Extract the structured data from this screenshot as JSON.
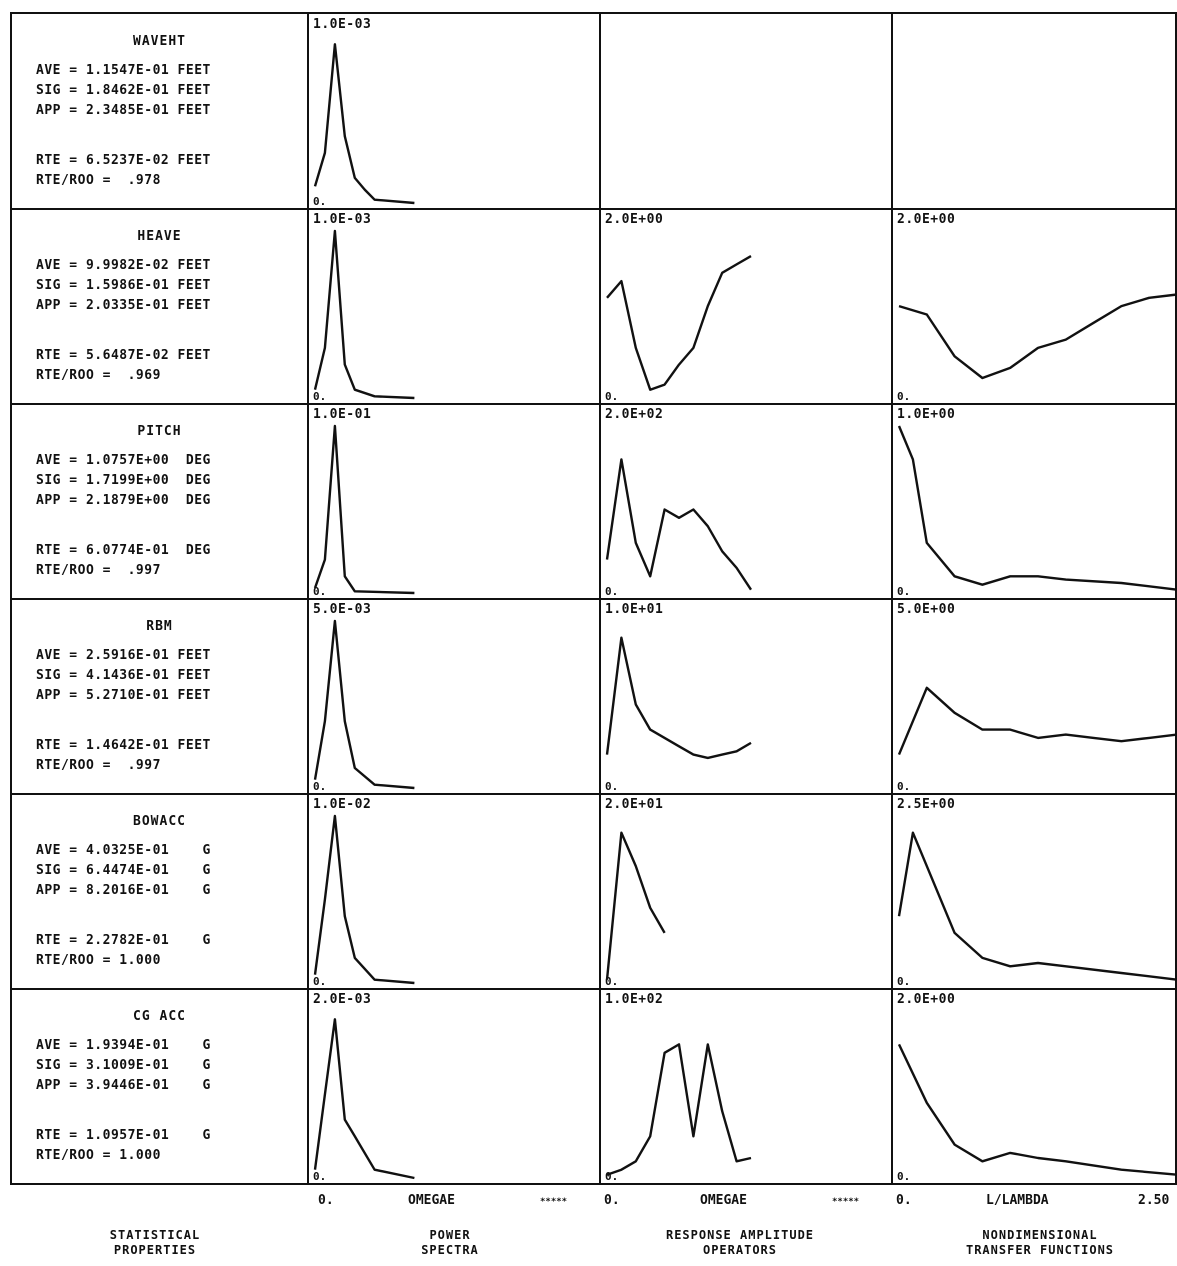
{
  "rows": [
    {
      "title": "WAVEHT",
      "stats": [
        "AVE = 1.1547E-01 FEET",
        "SIG = 1.8462E-01 FEET",
        "APP = 2.3485E-01 FEET"
      ],
      "rte": [
        "RTE = 6.5237E-02 FEET",
        "RTE/ROO =  .978"
      ],
      "spectra_scale": "1.0E-03",
      "rao_scale": "",
      "tf_scale": ""
    },
    {
      "title": "HEAVE",
      "stats": [
        "AVE = 9.9982E-02 FEET",
        "SIG = 1.5986E-01 FEET",
        "APP = 2.0335E-01 FEET"
      ],
      "rte": [
        "RTE = 5.6487E-02 FEET",
        "RTE/ROO =  .969"
      ],
      "spectra_scale": "1.0E-03",
      "rao_scale": "2.0E+00",
      "tf_scale": "2.0E+00"
    },
    {
      "title": "PITCH",
      "stats": [
        "AVE = 1.0757E+00  DEG",
        "SIG = 1.7199E+00  DEG",
        "APP = 2.1879E+00  DEG"
      ],
      "rte": [
        "RTE = 6.0774E-01  DEG",
        "RTE/ROO =  .997"
      ],
      "spectra_scale": "1.0E-01",
      "rao_scale": "2.0E+02",
      "tf_scale": "1.0E+00"
    },
    {
      "title": "RBM",
      "stats": [
        "AVE = 2.5916E-01 FEET",
        "SIG = 4.1436E-01 FEET",
        "APP = 5.2710E-01 FEET"
      ],
      "rte": [
        "RTE = 1.4642E-01 FEET",
        "RTE/ROO =  .997"
      ],
      "spectra_scale": "5.0E-03",
      "rao_scale": "1.0E+01",
      "tf_scale": "5.0E+00"
    },
    {
      "title": "BOWACC",
      "stats": [
        "AVE = 4.0325E-01    G",
        "SIG = 6.4474E-01    G",
        "APP = 8.2016E-01    G"
      ],
      "rte": [
        "RTE = 2.2782E-01    G",
        "RTE/ROO = 1.000"
      ],
      "spectra_scale": "1.0E-02",
      "rao_scale": "2.0E+01",
      "tf_scale": "2.5E+00"
    },
    {
      "title": "CG ACC",
      "stats": [
        "AVE = 1.9394E-01    G",
        "SIG = 3.1009E-01    G",
        "APP = 3.9446E-01    G"
      ],
      "rte": [
        "RTE = 1.0957E-01    G",
        "RTE/ROO = 1.000"
      ],
      "spectra_scale": "2.0E-03",
      "rao_scale": "1.0E+02",
      "tf_scale": "2.0E+00"
    }
  ],
  "zero_label": "0.",
  "axes": {
    "spectra": {
      "start": "0.",
      "label": "OMEGAE",
      "end": "*****"
    },
    "rao": {
      "start": "0.",
      "label": "OMEGAE",
      "end": "*****"
    },
    "tf": {
      "start": "0.",
      "label": "L/LAMBDA",
      "end": "2.50"
    }
  },
  "footers": {
    "stats": [
      "STATISTICAL",
      "PROPERTIES"
    ],
    "spectra": [
      "POWER",
      "SPECTRA"
    ],
    "rao": [
      "RESPONSE AMPLITUDE",
      "OPERATORS"
    ],
    "tf": [
      "NONDIMENSIONAL",
      "TRANSFER FUNCTIONS"
    ]
  },
  "chart_data": [
    {
      "type": "line",
      "panel": "power spectra",
      "series": [
        {
          "values": [
            [
              0,
              0.1
            ],
            [
              0.1,
              0.3
            ],
            [
              0.2,
              0.95
            ],
            [
              0.3,
              0.4
            ],
            [
              0.4,
              0.15
            ],
            [
              0.5,
              0.08
            ],
            [
              0.6,
              0.02
            ],
            [
              1,
              0
            ]
          ]
        },
        {
          "values": [
            [
              0,
              0.05
            ],
            [
              0.1,
              0.3
            ],
            [
              0.2,
              1.0
            ],
            [
              0.3,
              0.2
            ],
            [
              0.4,
              0.05
            ],
            [
              0.6,
              0.01
            ],
            [
              1,
              0
            ]
          ]
        },
        {
          "values": [
            [
              0,
              0.03
            ],
            [
              0.1,
              0.2
            ],
            [
              0.2,
              1.0
            ],
            [
              0.3,
              0.1
            ],
            [
              0.4,
              0.01
            ],
            [
              1,
              0
            ]
          ]
        },
        {
          "values": [
            [
              0,
              0.05
            ],
            [
              0.1,
              0.4
            ],
            [
              0.2,
              1.0
            ],
            [
              0.3,
              0.4
            ],
            [
              0.4,
              0.12
            ],
            [
              0.6,
              0.02
            ],
            [
              1,
              0
            ]
          ]
        },
        {
          "values": [
            [
              0,
              0.05
            ],
            [
              0.1,
              0.5
            ],
            [
              0.2,
              1.0
            ],
            [
              0.3,
              0.4
            ],
            [
              0.4,
              0.15
            ],
            [
              0.6,
              0.02
            ],
            [
              1,
              0
            ]
          ]
        },
        {
          "values": [
            [
              0,
              0.05
            ],
            [
              0.1,
              0.5
            ],
            [
              0.2,
              0.95
            ],
            [
              0.3,
              0.35
            ],
            [
              0.4,
              0.25
            ],
            [
              0.6,
              0.05
            ],
            [
              1,
              0
            ]
          ]
        }
      ]
    },
    {
      "type": "line",
      "panel": "response amplitude operators",
      "series": [
        {
          "values": []
        },
        {
          "values": [
            [
              0,
              0.6
            ],
            [
              0.1,
              0.7
            ],
            [
              0.2,
              0.3
            ],
            [
              0.3,
              0.05
            ],
            [
              0.4,
              0.08
            ],
            [
              0.5,
              0.2
            ],
            [
              0.6,
              0.3
            ],
            [
              0.7,
              0.55
            ],
            [
              0.8,
              0.75
            ],
            [
              0.9,
              0.8
            ],
            [
              1,
              0.85
            ]
          ]
        },
        {
          "values": [
            [
              0,
              0.2
            ],
            [
              0.1,
              0.8
            ],
            [
              0.2,
              0.3
            ],
            [
              0.3,
              0.1
            ],
            [
              0.4,
              0.5
            ],
            [
              0.5,
              0.45
            ],
            [
              0.6,
              0.5
            ],
            [
              0.7,
              0.4
            ],
            [
              0.8,
              0.25
            ],
            [
              0.9,
              0.15
            ],
            [
              1,
              0.02
            ]
          ]
        },
        {
          "values": [
            [
              0,
              0.2
            ],
            [
              0.1,
              0.9
            ],
            [
              0.2,
              0.5
            ],
            [
              0.3,
              0.35
            ],
            [
              0.4,
              0.3
            ],
            [
              0.5,
              0.25
            ],
            [
              0.6,
              0.2
            ],
            [
              0.7,
              0.18
            ],
            [
              0.8,
              0.2
            ],
            [
              0.9,
              0.22
            ],
            [
              1,
              0.27
            ]
          ]
        },
        {
          "values": [
            [
              0,
              0.02
            ],
            [
              0.1,
              0.9
            ],
            [
              0.2,
              0.7
            ],
            [
              0.3,
              0.45
            ],
            [
              0.4,
              0.3
            ]
          ]
        },
        {
          "values": [
            [
              0,
              0.02
            ],
            [
              0.1,
              0.05
            ],
            [
              0.2,
              0.1
            ],
            [
              0.3,
              0.25
            ],
            [
              0.4,
              0.75
            ],
            [
              0.5,
              0.8
            ],
            [
              0.6,
              0.25
            ],
            [
              0.7,
              0.8
            ],
            [
              0.8,
              0.4
            ],
            [
              0.9,
              0.1
            ],
            [
              1,
              0.12
            ]
          ]
        }
      ]
    },
    {
      "type": "line",
      "panel": "nondimensional transfer functions",
      "series": [
        {
          "values": []
        },
        {
          "values": [
            [
              0,
              0.55
            ],
            [
              0.1,
              0.5
            ],
            [
              0.2,
              0.25
            ],
            [
              0.3,
              0.12
            ],
            [
              0.4,
              0.18
            ],
            [
              0.5,
              0.3
            ],
            [
              0.6,
              0.35
            ],
            [
              0.7,
              0.45
            ],
            [
              0.8,
              0.55
            ],
            [
              0.9,
              0.6
            ],
            [
              1,
              0.62
            ]
          ]
        },
        {
          "values": [
            [
              0,
              1.0
            ],
            [
              0.05,
              0.8
            ],
            [
              0.1,
              0.3
            ],
            [
              0.2,
              0.1
            ],
            [
              0.3,
              0.05
            ],
            [
              0.4,
              0.1
            ],
            [
              0.5,
              0.1
            ],
            [
              0.6,
              0.08
            ],
            [
              0.8,
              0.06
            ],
            [
              1,
              0.02
            ]
          ]
        },
        {
          "values": [
            [
              0,
              0.2
            ],
            [
              0.1,
              0.6
            ],
            [
              0.2,
              0.45
            ],
            [
              0.3,
              0.35
            ],
            [
              0.4,
              0.35
            ],
            [
              0.5,
              0.3
            ],
            [
              0.6,
              0.32
            ],
            [
              0.7,
              0.3
            ],
            [
              0.8,
              0.28
            ],
            [
              0.9,
              0.3
            ],
            [
              1,
              0.32
            ]
          ]
        },
        {
          "values": [
            [
              0,
              0.4
            ],
            [
              0.05,
              0.9
            ],
            [
              0.1,
              0.7
            ],
            [
              0.2,
              0.3
            ],
            [
              0.3,
              0.15
            ],
            [
              0.4,
              0.1
            ],
            [
              0.5,
              0.12
            ],
            [
              0.6,
              0.1
            ],
            [
              0.8,
              0.06
            ],
            [
              1,
              0.02
            ]
          ]
        },
        {
          "values": [
            [
              0,
              0.8
            ],
            [
              0.1,
              0.45
            ],
            [
              0.2,
              0.2
            ],
            [
              0.3,
              0.1
            ],
            [
              0.4,
              0.15
            ],
            [
              0.5,
              0.12
            ],
            [
              0.6,
              0.1
            ],
            [
              0.8,
              0.05
            ],
            [
              1,
              0.02
            ]
          ]
        }
      ]
    }
  ]
}
